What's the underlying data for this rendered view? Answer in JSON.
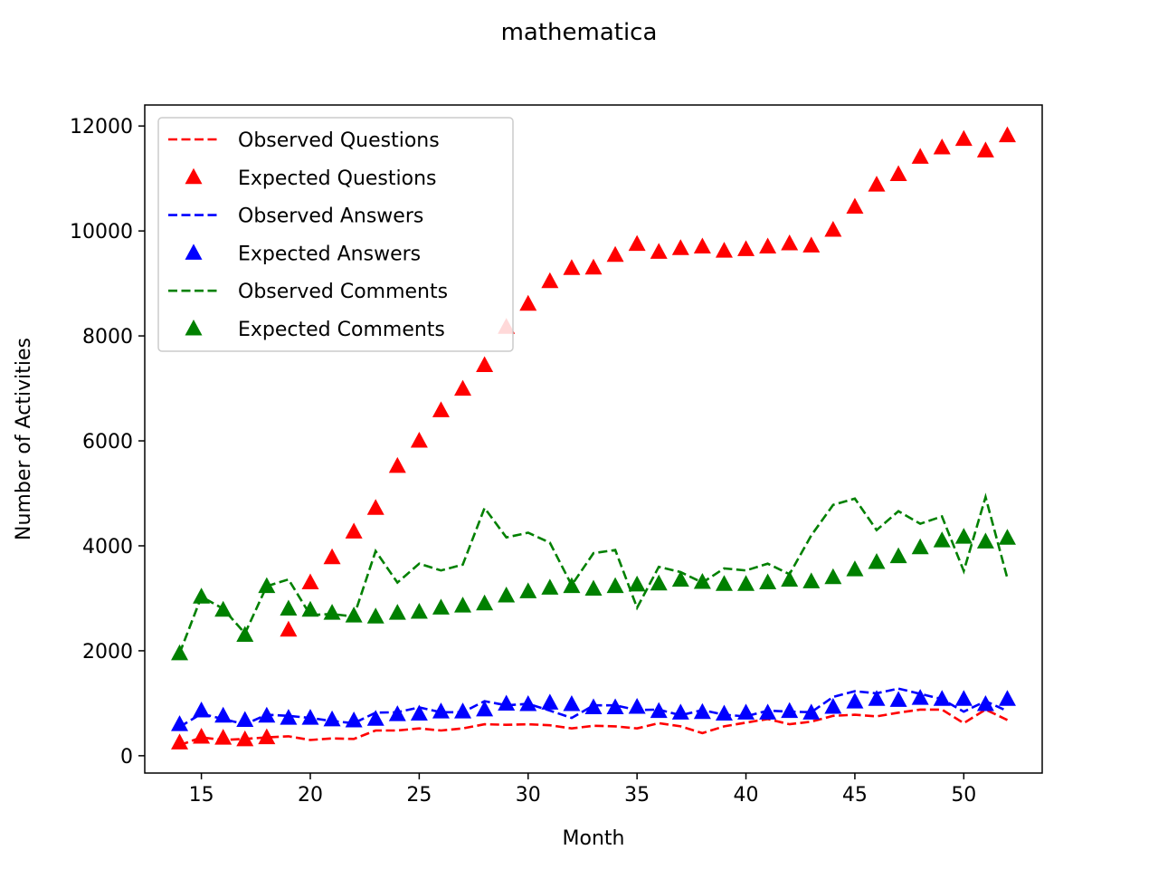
{
  "chart_data": {
    "type": "line",
    "title": "mathematica",
    "xlabel": "Month",
    "ylabel": "Number of Activities",
    "xlim": [
      12.4,
      53.6
    ],
    "ylim": [
      -330,
      12400
    ],
    "xticks": [
      15,
      20,
      25,
      30,
      35,
      40,
      45,
      50
    ],
    "yticks": [
      0,
      2000,
      4000,
      6000,
      8000,
      10000,
      12000
    ],
    "grid": false,
    "legend_position": "upper-left",
    "x": [
      14,
      15,
      16,
      17,
      18,
      19,
      20,
      21,
      22,
      23,
      24,
      25,
      26,
      27,
      28,
      29,
      30,
      31,
      32,
      33,
      34,
      35,
      36,
      37,
      38,
      39,
      40,
      41,
      42,
      43,
      44,
      45,
      46,
      47,
      48,
      49,
      50,
      51,
      52
    ],
    "series": [
      {
        "name": "Observed Questions",
        "style": "dashed",
        "color": "#ff0000",
        "values": [
          200,
          350,
          300,
          320,
          350,
          370,
          300,
          330,
          320,
          480,
          480,
          520,
          480,
          520,
          600,
          590,
          600,
          580,
          520,
          570,
          560,
          520,
          620,
          560,
          430,
          560,
          630,
          700,
          600,
          650,
          760,
          780,
          750,
          820,
          880,
          880,
          620,
          880,
          680
        ]
      },
      {
        "name": "Expected Questions",
        "style": "triangle",
        "color": "#ff0000",
        "values": [
          250,
          360,
          340,
          310,
          350,
          2400,
          3300,
          3780,
          4270,
          4720,
          5520,
          6000,
          6580,
          6990,
          7440,
          8170,
          8610,
          9040,
          9290,
          9300,
          9540,
          9750,
          9600,
          9670,
          9700,
          9620,
          9650,
          9700,
          9760,
          9720,
          10020,
          10460,
          10880,
          11080,
          11410,
          11590,
          11750,
          11530,
          11820
        ]
      },
      {
        "name": "Observed Answers",
        "style": "dashed",
        "color": "#0000ff",
        "values": [
          550,
          800,
          700,
          600,
          780,
          760,
          720,
          660,
          620,
          820,
          830,
          920,
          830,
          830,
          1040,
          960,
          990,
          860,
          720,
          960,
          960,
          870,
          880,
          770,
          870,
          780,
          750,
          860,
          840,
          830,
          1120,
          1230,
          1190,
          1280,
          1180,
          1080,
          840,
          1040,
          850
        ]
      },
      {
        "name": "Expected Answers",
        "style": "triangle",
        "color": "#0000ff",
        "values": [
          600,
          860,
          760,
          680,
          760,
          720,
          720,
          690,
          670,
          700,
          790,
          800,
          840,
          840,
          880,
          990,
          980,
          1010,
          980,
          920,
          920,
          930,
          850,
          820,
          830,
          800,
          820,
          820,
          850,
          820,
          930,
          1030,
          1080,
          1060,
          1100,
          1080,
          1080,
          980,
          1080
        ]
      },
      {
        "name": "Observed Comments",
        "style": "dashed",
        "color": "#008000",
        "values": [
          1950,
          3030,
          2800,
          2330,
          3230,
          3360,
          2680,
          2700,
          2650,
          3900,
          3300,
          3660,
          3530,
          3640,
          4720,
          4160,
          4250,
          4060,
          3250,
          3860,
          3920,
          2820,
          3600,
          3500,
          3300,
          3570,
          3530,
          3660,
          3460,
          4200,
          4780,
          4900,
          4300,
          4660,
          4420,
          4560,
          3520,
          4930,
          3380
        ]
      },
      {
        "name": "Expected Comments",
        "style": "triangle",
        "color": "#008000",
        "values": [
          1950,
          3030,
          2780,
          2300,
          3230,
          2800,
          2780,
          2720,
          2670,
          2650,
          2720,
          2740,
          2820,
          2860,
          2900,
          3050,
          3130,
          3200,
          3230,
          3180,
          3230,
          3260,
          3280,
          3350,
          3310,
          3270,
          3270,
          3300,
          3350,
          3320,
          3400,
          3550,
          3690,
          3800,
          3970,
          4100,
          4170,
          4080,
          4150
        ]
      }
    ]
  }
}
